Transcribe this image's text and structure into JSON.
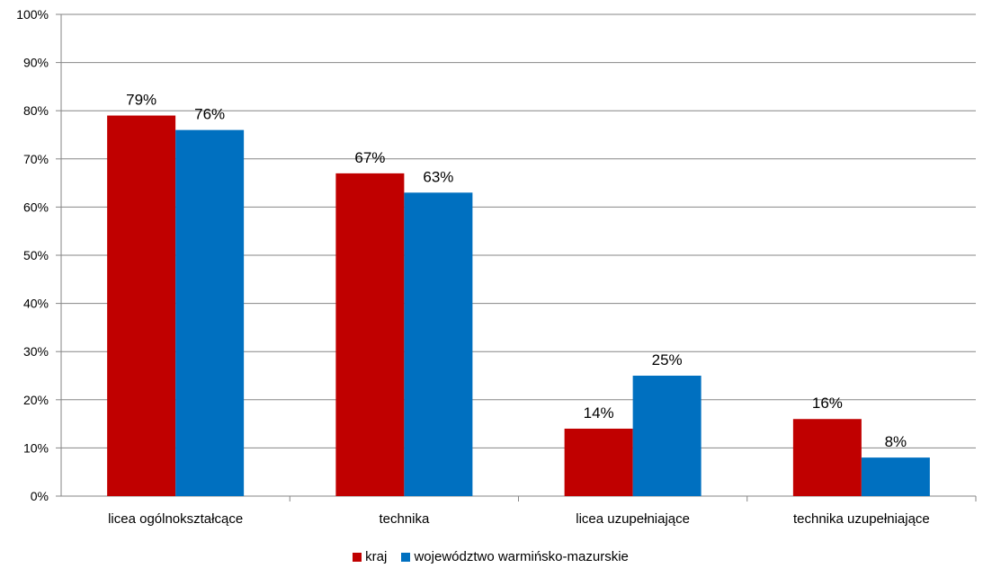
{
  "chart_data": {
    "type": "bar",
    "title": "",
    "xlabel": "",
    "ylabel": "",
    "ylim": [
      0,
      100
    ],
    "y_ticks": [
      "0%",
      "10%",
      "20%",
      "30%",
      "40%",
      "50%",
      "60%",
      "70%",
      "80%",
      "90%",
      "100%"
    ],
    "grid": "horizontal",
    "legend_position": "bottom",
    "categories": [
      "licea ogólnokształcące",
      "technika",
      "licea uzupełniające",
      "technika uzupełniające"
    ],
    "series": [
      {
        "name": "kraj",
        "color": "#C00000",
        "values": [
          79,
          67,
          14,
          16
        ],
        "labels": [
          "79%",
          "67%",
          "14%",
          "16%"
        ]
      },
      {
        "name": "województwo warmińsko-mazurskie",
        "color": "#0070C0",
        "values": [
          76,
          63,
          25,
          8
        ],
        "labels": [
          "76%",
          "63%",
          "25%",
          "8%"
        ]
      }
    ]
  }
}
